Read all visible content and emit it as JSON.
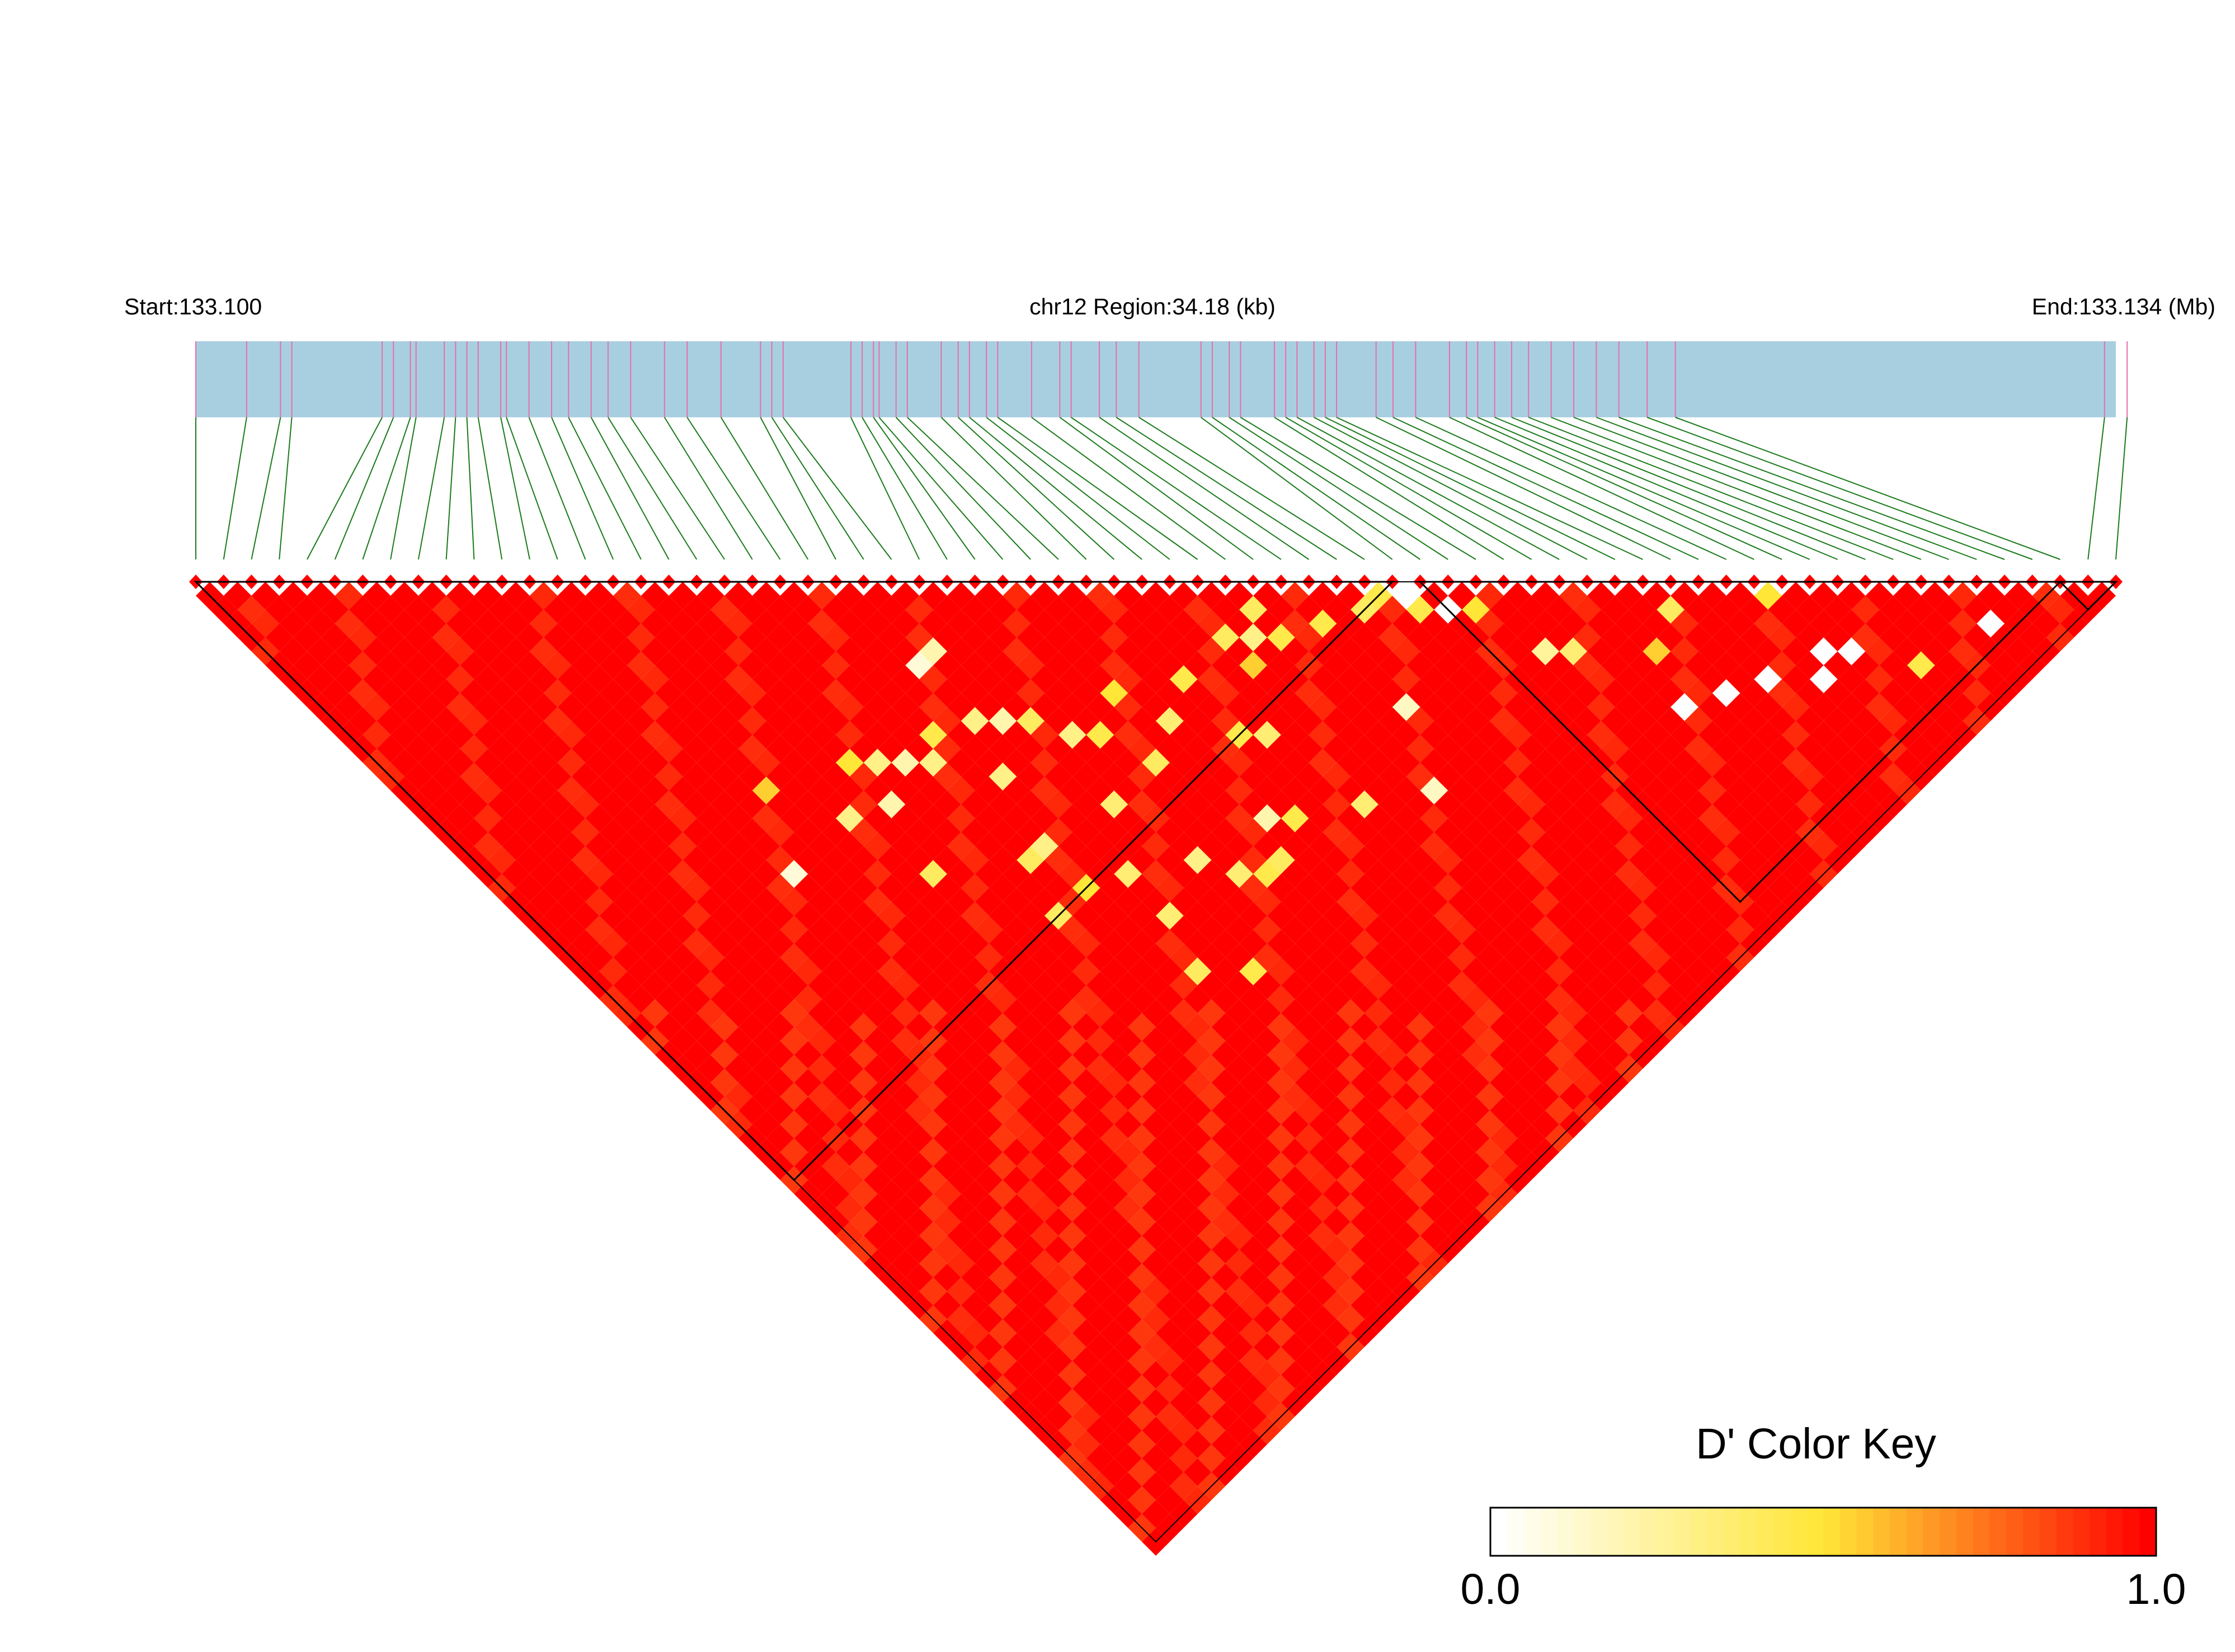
{
  "header": {
    "start_label": "Start:133.100",
    "region_label": "chr12 Region:34.18 (kb)",
    "end_label": "End:133.134 (Mb)"
  },
  "colors": {
    "track_fill": "#a8cfe0",
    "snp_tick": "#e66fa8",
    "connector": "#1a7a1a",
    "high_ld": "#ff0000",
    "low_ld": "#ffffff",
    "block_outline": "#000000"
  },
  "chart_data": {
    "type": "heatmap",
    "title": "",
    "region": {
      "chromosome": "chr12",
      "start_mb": 133.1,
      "end_mb": 133.134,
      "length_kb": 34.18
    },
    "snp_count": 70,
    "snp_positions_mb": [
      133.1,
      133.1009,
      133.1015,
      133.1017,
      133.1033,
      133.1035,
      133.1038,
      133.1039,
      133.1044,
      133.1046,
      133.1048,
      133.105,
      133.1054,
      133.1055,
      133.1059,
      133.1063,
      133.1066,
      133.107,
      133.1073,
      133.1077,
      133.1083,
      133.1087,
      133.1093,
      133.11,
      133.1102,
      133.1104,
      133.1116,
      133.1118,
      133.112,
      133.1121,
      133.1124,
      133.1126,
      133.1132,
      133.1135,
      133.1137,
      133.114,
      133.1142,
      133.1148,
      133.1153,
      133.1155,
      133.116,
      133.1163,
      133.1167,
      133.1178,
      133.118,
      133.1183,
      133.1185,
      133.1191,
      133.1193,
      133.1195,
      133.1198,
      133.12,
      133.1202,
      133.1209,
      133.1212,
      133.1216,
      133.1222,
      133.1225,
      133.1227,
      133.123,
      133.1233,
      133.1236,
      133.124,
      133.1244,
      133.1248,
      133.1252,
      133.1257,
      133.1262,
      133.1338,
      133.1342
    ],
    "ld_measure": "D'",
    "color_key": {
      "title": "D' Color Key",
      "min_label": "0.0",
      "max_label": "1.0",
      "range": [
        0,
        1
      ],
      "steps": 40
    },
    "haplotype_blocks": [
      {
        "first_snp": 1,
        "last_snp": 44
      },
      {
        "first_snp": 45,
        "last_snp": 68
      },
      {
        "first_snp": 68,
        "last_snp": 70
      }
    ],
    "low_ld_cells": [
      {
        "i": 44,
        "j": 45,
        "d": 0.0
      },
      {
        "i": 45,
        "j": 47,
        "d": 0.0
      },
      {
        "i": 64,
        "j": 67,
        "d": 0.0
      },
      {
        "i": 56,
        "j": 63,
        "d": 0.0
      },
      {
        "i": 58,
        "j": 63,
        "d": 0.0
      },
      {
        "i": 57,
        "j": 62,
        "d": 0.0
      },
      {
        "i": 54,
        "j": 61,
        "d": 0.0
      },
      {
        "i": 52,
        "j": 60,
        "d": 0.0
      },
      {
        "i": 50,
        "j": 59,
        "d": 0.0
      },
      {
        "i": 43,
        "j": 44,
        "d": 0.45
      },
      {
        "i": 44,
        "j": 46,
        "d": 0.45
      },
      {
        "i": 42,
        "j": 44,
        "d": 0.4
      },
      {
        "i": 40,
        "j": 43,
        "d": 0.45
      },
      {
        "i": 38,
        "j": 42,
        "d": 0.45
      },
      {
        "i": 36,
        "j": 42,
        "d": 0.55
      },
      {
        "i": 33,
        "j": 40,
        "d": 0.45
      },
      {
        "i": 30,
        "j": 38,
        "d": 0.5
      },
      {
        "i": 26,
        "j": 36,
        "d": 0.4
      },
      {
        "i": 22,
        "j": 33,
        "d": 0.45
      },
      {
        "i": 18,
        "j": 31,
        "d": 0.5
      },
      {
        "i": 14,
        "j": 29,
        "d": 0.55
      },
      {
        "i": 24,
        "j": 30,
        "d": 0.1
      },
      {
        "i": 25,
        "j": 30,
        "d": 0.2
      },
      {
        "i": 36,
        "j": 40,
        "d": 0.4
      },
      {
        "i": 37,
        "j": 41,
        "d": 0.3
      },
      {
        "i": 38,
        "j": 40,
        "d": 0.4
      },
      {
        "i": 24,
        "j": 34,
        "d": 0.3
      },
      {
        "i": 25,
        "j": 35,
        "d": 0.2
      },
      {
        "i": 19,
        "j": 32,
        "d": 0.3
      },
      {
        "i": 20,
        "j": 33,
        "d": 0.2
      },
      {
        "i": 21,
        "j": 34,
        "d": 0.3
      },
      {
        "i": 16,
        "j": 33,
        "d": 0.3
      },
      {
        "i": 18,
        "j": 34,
        "d": 0.2
      },
      {
        "i": 12,
        "j": 33,
        "d": 0.1
      },
      {
        "i": 40,
        "j": 49,
        "d": 0.15
      },
      {
        "i": 31,
        "j": 41,
        "d": 0.35
      },
      {
        "i": 47,
        "j": 52,
        "d": 0.25
      },
      {
        "i": 48,
        "j": 53,
        "d": 0.35
      },
      {
        "i": 53,
        "j": 55,
        "d": 0.4
      },
      {
        "i": 60,
        "j": 66,
        "d": 0.45
      },
      {
        "i": 51,
        "j": 56,
        "d": 0.55
      },
      {
        "i": 57,
        "j": 58,
        "d": 0.5
      },
      {
        "i": 46,
        "j": 48,
        "d": 0.5
      },
      {
        "i": 34,
        "j": 45,
        "d": 0.35
      },
      {
        "i": 33,
        "j": 44,
        "d": 0.45
      },
      {
        "i": 27,
        "j": 38,
        "d": 0.3
      },
      {
        "i": 28,
        "j": 39,
        "d": 0.45
      },
      {
        "i": 23,
        "j": 37,
        "d": 0.3
      },
      {
        "i": 29,
        "j": 42,
        "d": 0.4
      },
      {
        "i": 26,
        "j": 42,
        "d": 0.35
      },
      {
        "i": 31,
        "j": 48,
        "d": 0.2
      },
      {
        "i": 35,
        "j": 51,
        "d": 0.35
      },
      {
        "i": 38,
        "j": 53,
        "d": 0.15
      },
      {
        "i": 32,
        "j": 49,
        "d": 0.45
      },
      {
        "i": 30,
        "j": 50,
        "d": 0.4
      },
      {
        "i": 24,
        "j": 45,
        "d": 0.35
      },
      {
        "i": 22,
        "j": 44,
        "d": 0.5
      },
      {
        "i": 22,
        "j": 41,
        "d": 0.3
      },
      {
        "i": 21,
        "j": 41,
        "d": 0.4
      },
      {
        "i": 17,
        "j": 38,
        "d": 0.4
      },
      {
        "i": 27,
        "j": 47,
        "d": 0.3
      },
      {
        "i": 20,
        "j": 44,
        "d": 0.4
      },
      {
        "i": 24,
        "j": 48,
        "d": 0.35
      },
      {
        "i": 29,
        "j": 50,
        "d": 0.45
      },
      {
        "i": 28,
        "j": 49,
        "d": 0.35
      },
      {
        "i": 25,
        "j": 53,
        "d": 0.45
      },
      {
        "i": 23,
        "j": 51,
        "d": 0.4
      }
    ]
  }
}
